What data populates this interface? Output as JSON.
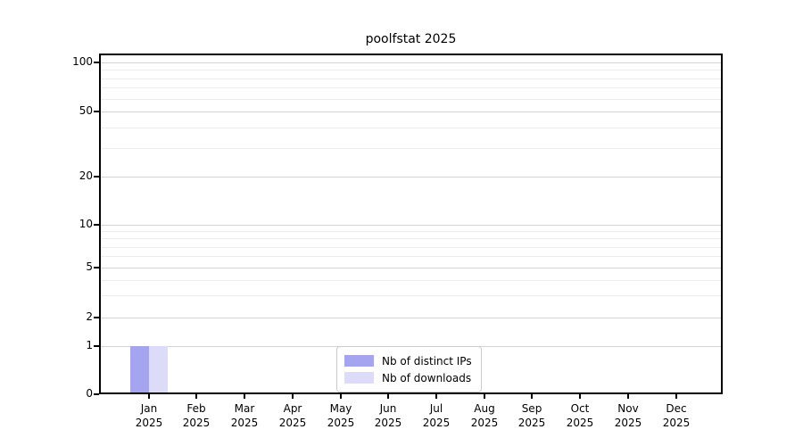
{
  "title": "poolfstat 2025",
  "colors": {
    "distinct_ips": "#a4a4f0",
    "downloads": "#dcdcf8",
    "grid_major": "#d3d3d3",
    "grid_minor": "#ececec",
    "spine": "#000000",
    "legend_border": "#cccccc"
  },
  "chart_data": {
    "type": "bar",
    "title": "poolfstat 2025",
    "categories": [
      "Jan 2025",
      "Feb 2025",
      "Mar 2025",
      "Apr 2025",
      "May 2025",
      "Jun 2025",
      "Jul 2025",
      "Aug 2025",
      "Sep 2025",
      "Oct 2025",
      "Nov 2025",
      "Dec 2025"
    ],
    "x_ticks": [
      {
        "month": "Jan",
        "year": "2025"
      },
      {
        "month": "Feb",
        "year": "2025"
      },
      {
        "month": "Mar",
        "year": "2025"
      },
      {
        "month": "Apr",
        "year": "2025"
      },
      {
        "month": "May",
        "year": "2025"
      },
      {
        "month": "Jun",
        "year": "2025"
      },
      {
        "month": "Jul",
        "year": "2025"
      },
      {
        "month": "Aug",
        "year": "2025"
      },
      {
        "month": "Sep",
        "year": "2025"
      },
      {
        "month": "Oct",
        "year": "2025"
      },
      {
        "month": "Nov",
        "year": "2025"
      },
      {
        "month": "Dec",
        "year": "2025"
      }
    ],
    "series": [
      {
        "name": "Nb of distinct IPs",
        "color": "#a4a4f0",
        "values": [
          1,
          0,
          0,
          0,
          0,
          0,
          0,
          0,
          0,
          0,
          0,
          0
        ]
      },
      {
        "name": "Nb of downloads",
        "color": "#dcdcf8",
        "values": [
          1,
          0,
          0,
          0,
          0,
          0,
          0,
          0,
          0,
          0,
          0,
          0
        ]
      }
    ],
    "y_axis": {
      "scale": "symlog",
      "major_ticks": [
        0,
        1,
        2,
        5,
        10,
        20,
        50,
        100
      ],
      "minor_ticks": [
        3,
        4,
        6,
        7,
        8,
        9,
        30,
        40,
        60,
        70,
        80,
        90
      ],
      "ylim": [
        0,
        110
      ]
    },
    "xlabel": "",
    "ylabel": "",
    "grid": true,
    "legend": {
      "position": "inside-bottom-center",
      "entries": [
        "Nb of distinct IPs",
        "Nb of downloads"
      ]
    }
  }
}
